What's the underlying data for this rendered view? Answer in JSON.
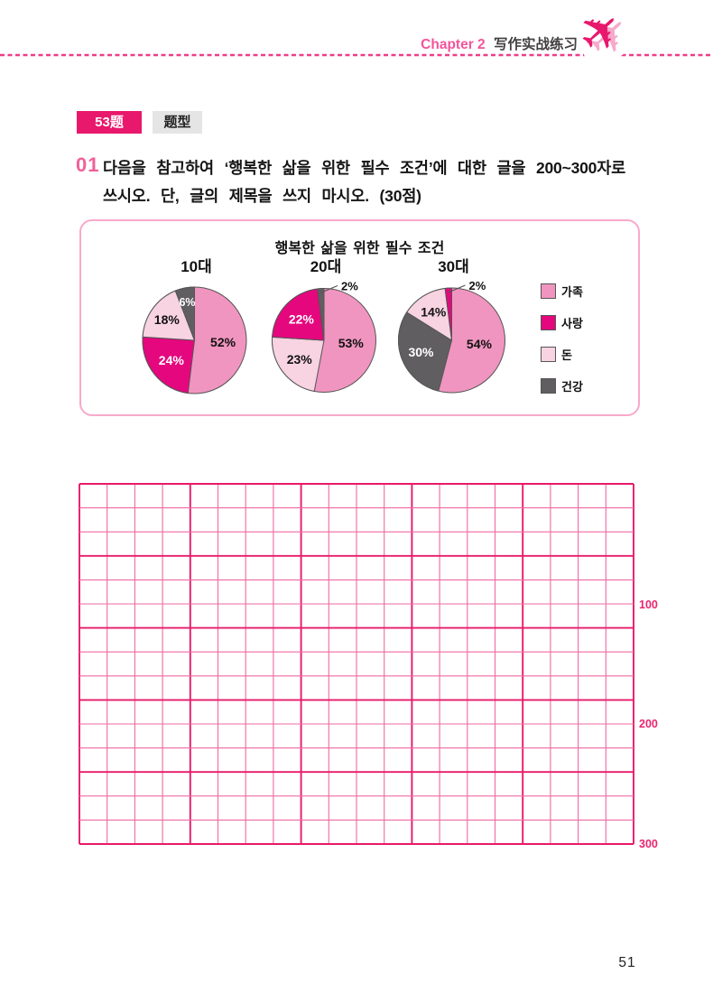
{
  "header": {
    "chapter": "Chapter 2",
    "title": "写作实战练习"
  },
  "badge": {
    "number_label": "53题",
    "type_label": "题型"
  },
  "question": {
    "number": "01",
    "line1": "다음을 참고하여 ‘행복한 삶을 위한 필수 조건’에 대한 글을 200~300자로",
    "line2": "쓰시오. 단, 글의 제목을 쓰지 마시오. (30점)"
  },
  "chart_data": {
    "type": "pie",
    "title": "행복한 삶을 위한 필수 조건",
    "legend": [
      {
        "label": "가족",
        "color": "#f095bf"
      },
      {
        "label": "사랑",
        "color": "#e5077e"
      },
      {
        "label": "돈",
        "color": "#f8d3e2"
      },
      {
        "label": "건강",
        "color": "#605e60"
      }
    ],
    "pies": [
      {
        "label": "10대",
        "slices": [
          {
            "name": "가족",
            "value": 52,
            "color": "#f095bf",
            "text_color": "#111111"
          },
          {
            "name": "사랑",
            "value": 24,
            "color": "#e5077e",
            "text_color": "#ffffff"
          },
          {
            "name": "돈",
            "value": 18,
            "color": "#f8d3e2",
            "text_color": "#111111"
          },
          {
            "name": "건강",
            "value": 6,
            "color": "#605e60",
            "text_color": "#ffffff"
          }
        ]
      },
      {
        "label": "20대",
        "slices": [
          {
            "name": "가족",
            "value": 53,
            "color": "#f095bf",
            "text_color": "#111111"
          },
          {
            "name": "돈",
            "value": 23,
            "color": "#f8d3e2",
            "text_color": "#111111"
          },
          {
            "name": "사랑",
            "value": 22,
            "color": "#e5077e",
            "text_color": "#ffffff"
          },
          {
            "name": "건강",
            "value": 2,
            "color": "#605e60",
            "text_color": "#111111",
            "outside": true
          }
        ]
      },
      {
        "label": "30대",
        "slices": [
          {
            "name": "가족",
            "value": 54,
            "color": "#f095bf",
            "text_color": "#111111"
          },
          {
            "name": "건강",
            "value": 30,
            "color": "#605e60",
            "text_color": "#ffffff"
          },
          {
            "name": "돈",
            "value": 14,
            "color": "#f8d3e2",
            "text_color": "#111111"
          },
          {
            "name": "사랑",
            "value": 2,
            "color": "#e5077e",
            "text_color": "#111111",
            "outside": true
          }
        ]
      }
    ]
  },
  "grid": {
    "columns": 20,
    "rows": 15,
    "markers": [
      "100",
      "200",
      "300"
    ]
  },
  "page_number": "51",
  "colors": {
    "accent": "#e8186c",
    "grid_strong": "#e81a6a",
    "grid_thin": "#ef6aa2",
    "box_border": "#f8a9ca",
    "slice_stroke": "#555555"
  },
  "icons": {
    "plane": "✈"
  }
}
